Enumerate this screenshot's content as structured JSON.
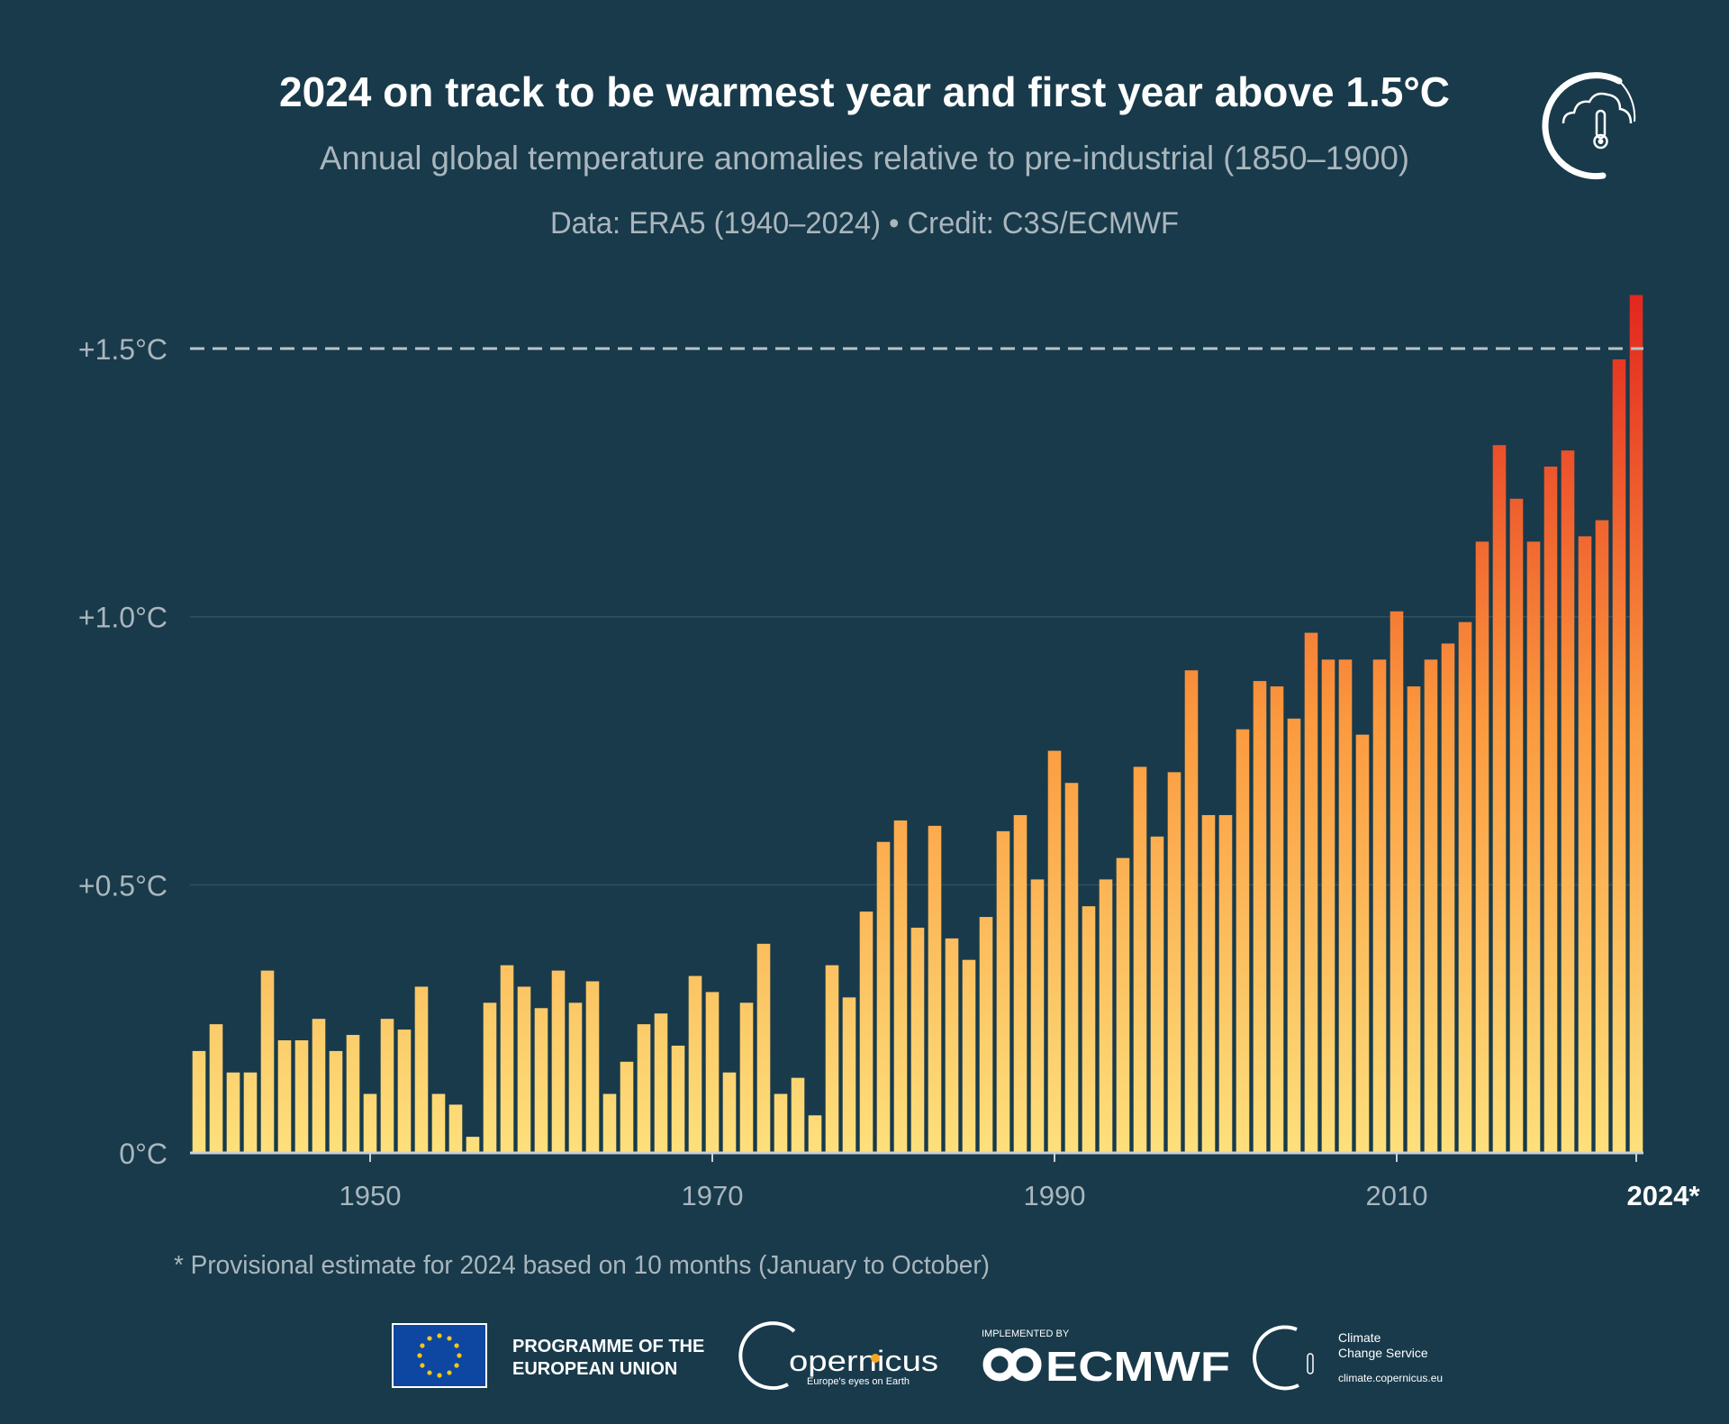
{
  "header": {
    "title": "2024 on track to be warmest year and first year above 1.5°C",
    "subtitle": "Annual global temperature anomalies relative to pre-industrial (1850–1900)",
    "source_line": "Data: ERA5 (1940–2024) • Credit: C3S/ECMWF"
  },
  "footnote": "* Provisional estimate for 2024 based on 10 months (January to October)",
  "logos": {
    "eu_text_line1": "PROGRAMME OF THE",
    "eu_text_line2": "EUROPEAN UNION",
    "copernicus": "opernicus",
    "copernicus_tagline": "Europe's eyes on Earth",
    "ecmwf_label": "IMPLEMENTED BY",
    "ecmwf": "ECMWF",
    "c3s_line1": "Climate",
    "c3s_line2": "Change Service",
    "c3s_url": "climate.copernicus.eu"
  },
  "colors": {
    "background": "#183a4b",
    "bar_low": "#fde07c",
    "bar_mid": "#fb9a3e",
    "bar_high": "#e3261f",
    "threshold_line": "#b9c3c8"
  },
  "chart_data": {
    "type": "bar",
    "title": "2024 on track to be warmest year and first year above 1.5°C",
    "xlabel": "",
    "ylabel": "",
    "ylim": [
      0,
      1.6
    ],
    "y_ticks": [
      {
        "value": 0,
        "label": "0°C"
      },
      {
        "value": 0.5,
        "label": "+0.5°C"
      },
      {
        "value": 1.0,
        "label": "+1.0°C"
      },
      {
        "value": 1.5,
        "label": "+1.5°C"
      }
    ],
    "x_ticks": [
      {
        "value": 1950,
        "label": "1950"
      },
      {
        "value": 1970,
        "label": "1970"
      },
      {
        "value": 1990,
        "label": "1990"
      },
      {
        "value": 2010,
        "label": "2010"
      },
      {
        "value": 2024,
        "label": "2024*"
      }
    ],
    "threshold": {
      "value": 1.5,
      "style": "dashed"
    },
    "grid": true,
    "start_year": 1940,
    "years": [
      1940,
      1941,
      1942,
      1943,
      1944,
      1945,
      1946,
      1947,
      1948,
      1949,
      1950,
      1951,
      1952,
      1953,
      1954,
      1955,
      1956,
      1957,
      1958,
      1959,
      1960,
      1961,
      1962,
      1963,
      1964,
      1965,
      1966,
      1967,
      1968,
      1969,
      1970,
      1971,
      1972,
      1973,
      1974,
      1975,
      1976,
      1977,
      1978,
      1979,
      1980,
      1981,
      1982,
      1983,
      1984,
      1985,
      1986,
      1987,
      1988,
      1989,
      1990,
      1991,
      1992,
      1993,
      1994,
      1995,
      1996,
      1997,
      1998,
      1999,
      2000,
      2001,
      2002,
      2003,
      2004,
      2005,
      2006,
      2007,
      2008,
      2009,
      2010,
      2011,
      2012,
      2013,
      2014,
      2015,
      2016,
      2017,
      2018,
      2019,
      2020,
      2021,
      2022,
      2023,
      2024
    ],
    "values": [
      0.19,
      0.24,
      0.15,
      0.15,
      0.34,
      0.21,
      0.21,
      0.25,
      0.19,
      0.22,
      0.11,
      0.25,
      0.23,
      0.31,
      0.11,
      0.09,
      0.03,
      0.28,
      0.35,
      0.31,
      0.27,
      0.34,
      0.28,
      0.32,
      0.11,
      0.17,
      0.24,
      0.26,
      0.2,
      0.33,
      0.3,
      0.15,
      0.28,
      0.39,
      0.11,
      0.14,
      0.07,
      0.35,
      0.29,
      0.45,
      0.58,
      0.62,
      0.42,
      0.61,
      0.4,
      0.36,
      0.44,
      0.6,
      0.63,
      0.51,
      0.75,
      0.69,
      0.46,
      0.51,
      0.55,
      0.72,
      0.59,
      0.71,
      0.9,
      0.63,
      0.63,
      0.79,
      0.88,
      0.87,
      0.81,
      0.97,
      0.92,
      0.92,
      0.78,
      0.92,
      1.01,
      0.87,
      0.92,
      0.95,
      0.99,
      1.14,
      1.32,
      1.22,
      1.14,
      1.28,
      1.31,
      1.15,
      1.18,
      1.48,
      1.6
    ]
  }
}
